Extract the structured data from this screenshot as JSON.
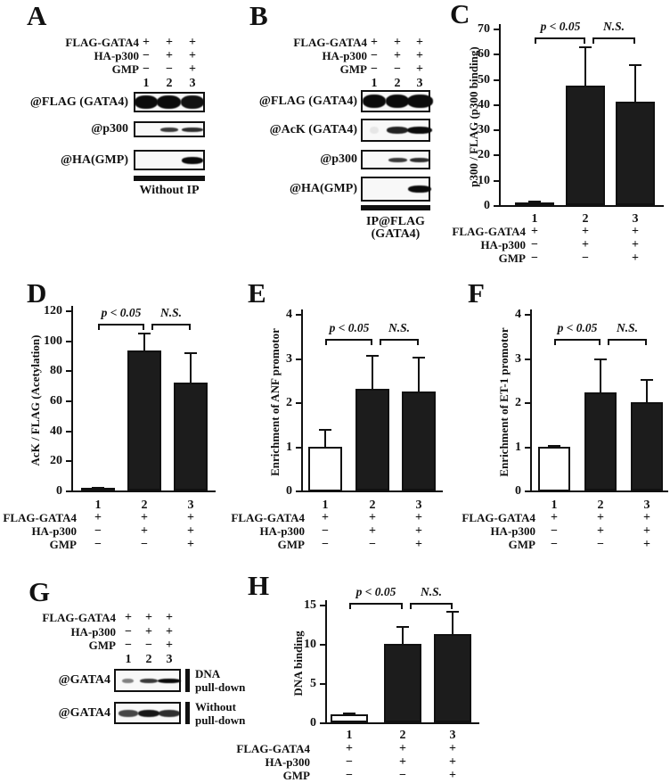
{
  "colors": {
    "ink": "#111111",
    "bar_fill": "#1c1c1c",
    "bar_open": "#ffffff",
    "band": "#0b0b0b",
    "background": "#ffffff"
  },
  "conditions": {
    "row_labels": [
      "FLAG-GATA4",
      "HA-p300",
      "GMP"
    ],
    "rows": [
      [
        "+",
        "+",
        "+"
      ],
      [
        "−",
        "+",
        "+"
      ],
      [
        "−",
        "−",
        "+"
      ]
    ],
    "lanes": [
      "1",
      "2",
      "3"
    ]
  },
  "blot_panels": [
    {
      "panel_letter": "A",
      "footer_lines": [
        "Without IP"
      ],
      "rows": [
        {
          "antibody": "@FLAG (GATA4)",
          "style": "thick",
          "bands": [
            1,
            1,
            0.97
          ],
          "band_widths": [
            1,
            1.05,
            1
          ]
        },
        {
          "antibody": "@p300",
          "style": "thin",
          "bands": [
            0,
            0.8,
            0.85
          ],
          "band_widths": [
            1,
            0.9,
            1.1
          ]
        },
        {
          "antibody": "@HA(GMP)",
          "style": "medium",
          "bands": [
            0,
            0,
            1
          ],
          "band_widths": [
            1,
            1,
            1
          ]
        }
      ]
    },
    {
      "panel_letter": "B",
      "footer_lines": [
        "IP@FLAG",
        "(GATA4)"
      ],
      "rows": [
        {
          "antibody": "@FLAG (GATA4)",
          "style": "thick",
          "bands": [
            1,
            1,
            1
          ],
          "band_widths": [
            1,
            1,
            1.1
          ]
        },
        {
          "antibody": "@AcK (GATA4)",
          "style": "medium",
          "bands": [
            0.07,
            0.9,
            1
          ],
          "band_widths": [
            0.4,
            1,
            1.15
          ]
        },
        {
          "antibody": "@p300",
          "style": "thin",
          "bands": [
            0,
            0.8,
            0.85
          ],
          "band_widths": [
            1,
            0.95,
            1
          ]
        },
        {
          "antibody": "@HA(GMP)",
          "style": "medium",
          "bands": [
            0,
            0,
            1
          ],
          "band_widths": [
            1,
            1,
            1.1
          ]
        }
      ]
    },
    {
      "panel_letter": "G",
      "footer_lines": [],
      "rows": [
        {
          "antibody": "@GATA4",
          "style": "thin",
          "bands": [
            0.5,
            0.8,
            1
          ],
          "band_widths": [
            0.6,
            0.9,
            1.2
          ],
          "annotation": [
            "DNA",
            "pull-down"
          ]
        },
        {
          "antibody": "@GATA4",
          "style": "medium",
          "bands": [
            0.75,
            0.95,
            0.85
          ],
          "band_widths": [
            0.9,
            1,
            1
          ],
          "annotation": [
            "Without",
            "pull-down"
          ]
        }
      ]
    }
  ],
  "chart_data": [
    {
      "id": "C",
      "panel_letter": "C",
      "type": "bar",
      "ylabel": "p300 / FLAG (p300 binding)",
      "ylim": [
        0,
        70
      ],
      "yticks": [
        0,
        10,
        20,
        30,
        40,
        50,
        60,
        70
      ],
      "categories": [
        "1",
        "2",
        "3"
      ],
      "values": [
        1,
        47.5,
        41
      ],
      "errors": [
        0.6,
        15.5,
        15
      ],
      "open_bars": [
        true,
        false,
        false
      ],
      "significance": [
        {
          "from": 0,
          "to": 1,
          "label": "p < 0.05"
        },
        {
          "from": 1,
          "to": 2,
          "label": "N.S."
        }
      ]
    },
    {
      "id": "D",
      "panel_letter": "D",
      "type": "bar",
      "ylabel": "AcK / FLAG (Acetylation)",
      "ylim": [
        0,
        120
      ],
      "yticks": [
        0,
        20,
        40,
        60,
        80,
        100,
        120
      ],
      "categories": [
        "1",
        "2",
        "3"
      ],
      "values": [
        1.5,
        93,
        72
      ],
      "errors": [
        0.6,
        12,
        20
      ],
      "open_bars": [
        false,
        false,
        false
      ],
      "significance": [
        {
          "from": 0,
          "to": 1,
          "label": "p < 0.05"
        },
        {
          "from": 1,
          "to": 2,
          "label": "N.S."
        }
      ]
    },
    {
      "id": "E",
      "panel_letter": "E",
      "type": "bar",
      "ylabel": "Enrichment of ANF promotor",
      "ylim": [
        0,
        4
      ],
      "yticks": [
        0,
        1,
        2,
        3,
        4
      ],
      "categories": [
        "1",
        "2",
        "3"
      ],
      "values": [
        1.0,
        2.3,
        2.25
      ],
      "errors": [
        0.4,
        0.78,
        0.78
      ],
      "open_bars": [
        true,
        false,
        false
      ],
      "significance": [
        {
          "from": 0,
          "to": 1,
          "label": "p < 0.05"
        },
        {
          "from": 1,
          "to": 2,
          "label": "N.S."
        }
      ]
    },
    {
      "id": "F",
      "panel_letter": "F",
      "type": "bar",
      "ylabel": "Enrichment of ET-1 promotor",
      "ylim": [
        0,
        4
      ],
      "yticks": [
        0,
        1,
        2,
        3,
        4
      ],
      "categories": [
        "1",
        "2",
        "3"
      ],
      "values": [
        1.0,
        2.22,
        2.0
      ],
      "errors": [
        0.04,
        0.76,
        0.53
      ],
      "open_bars": [
        true,
        false,
        false
      ],
      "significance": [
        {
          "from": 0,
          "to": 1,
          "label": "p < 0.05"
        },
        {
          "from": 1,
          "to": 2,
          "label": "N.S."
        }
      ]
    },
    {
      "id": "H",
      "panel_letter": "H",
      "type": "bar",
      "ylabel": "DNA binding",
      "ylim": [
        0,
        15
      ],
      "yticks": [
        0,
        5,
        10,
        15
      ],
      "categories": [
        "1",
        "2",
        "3"
      ],
      "values": [
        1.0,
        10.0,
        11.3
      ],
      "errors": [
        0.3,
        2.3,
        2.9
      ],
      "open_bars": [
        true,
        false,
        false
      ],
      "significance": [
        {
          "from": 0,
          "to": 1,
          "label": "p < 0.05"
        },
        {
          "from": 1,
          "to": 2,
          "label": "N.S."
        }
      ]
    }
  ]
}
